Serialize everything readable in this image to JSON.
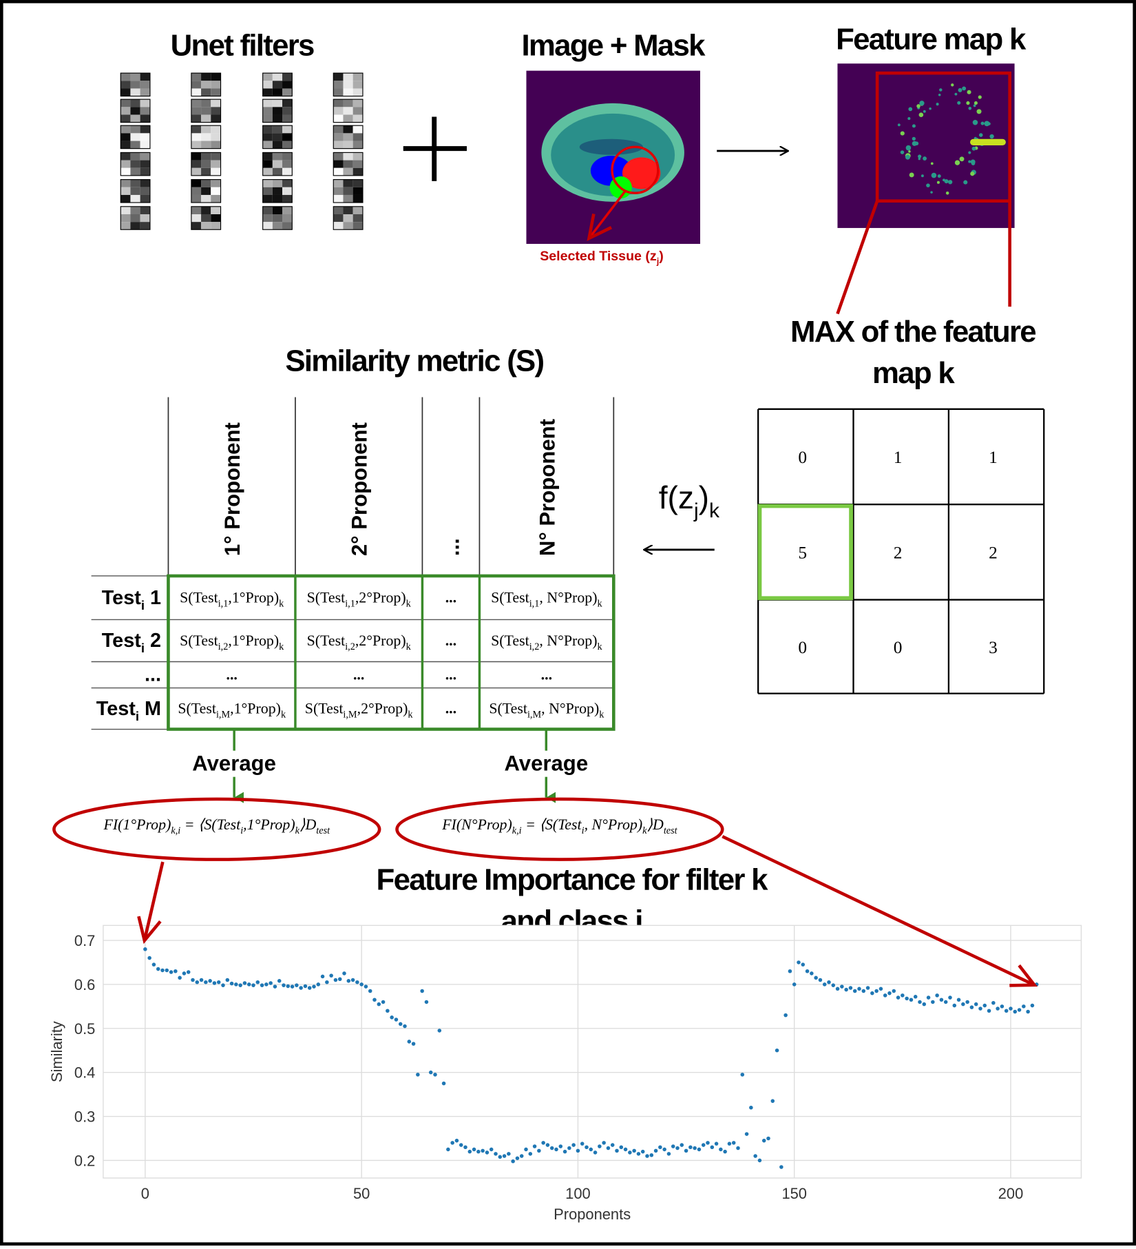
{
  "filters_title": "Unet filters",
  "image_title": "Image + Mask",
  "selected_tissue": [
    "Selected Tissue (z",
    "j",
    ")"
  ],
  "feature_map_title": "Feature map k",
  "max_label": "MAX of the feature map k",
  "matrix": [
    [
      0,
      1,
      1
    ],
    [
      5,
      2,
      2
    ],
    [
      0,
      0,
      3
    ]
  ],
  "f_label": [
    "f(z",
    "j",
    ")",
    "k"
  ],
  "similarity_title": "Similarity metric (S)",
  "table": {
    "columns": [
      "1° Proponent",
      "2° Proponent",
      "...",
      "N° Proponent"
    ],
    "rows": [
      {
        "label": [
          "Test",
          "i",
          " 1"
        ],
        "cells": [
          [
            "S(Test",
            "i,1",
            ",1°Prop)",
            "k"
          ],
          [
            "S(Test",
            "i,1",
            ",2°Prop)",
            "k"
          ],
          "...",
          [
            "S(Test",
            "i,1",
            ", N°Prop)",
            "k"
          ]
        ]
      },
      {
        "label": [
          "Test",
          "i",
          " 2"
        ],
        "cells": [
          [
            "S(Test",
            "i,2",
            ",1°Prop)",
            "k"
          ],
          [
            "S(Test",
            "i,2",
            ",2°Prop)",
            "k"
          ],
          "...",
          [
            "S(Test",
            "i,2",
            ", N°Prop)",
            "k"
          ]
        ]
      },
      {
        "label": "...",
        "cells": [
          "...",
          "...",
          "...",
          "..."
        ]
      },
      {
        "label": [
          "Test",
          "i",
          " M"
        ],
        "cells": [
          [
            "S(Test",
            "i,M",
            ",1°Prop)",
            "k"
          ],
          [
            "S(Test",
            "i,M",
            ",2°Prop)",
            "k"
          ],
          "...",
          [
            "S(Test",
            "i,M",
            ", N°Prop)",
            "k"
          ]
        ]
      }
    ]
  },
  "average_labels": [
    "Average",
    "Average"
  ],
  "formulas": [
    [
      "FI(1°Prop)",
      "k,i",
      " = ⟨S(Test",
      "i",
      ",1°Prop)",
      "k",
      "⟩D",
      "test"
    ],
    [
      "FI(N°Prop)",
      "k,i",
      " = ⟨S(Test",
      "i",
      ", N°Prop)",
      "k",
      "⟩D",
      "test"
    ]
  ],
  "chart_data": {
    "type": "scatter",
    "title": "Feature Importance for filter k and class i",
    "xlabel": "Proponents",
    "ylabel": "Similarity",
    "color": "#1f77b4",
    "grid": true,
    "xlim": [
      -9.7,
      216.3
    ],
    "ylim": [
      0.16,
      0.734
    ],
    "xticks": [
      0,
      50,
      100,
      150,
      200
    ],
    "yticks": [
      0.2,
      0.3,
      0.4,
      0.5,
      0.6,
      0.7
    ],
    "x": [
      0,
      1,
      2,
      3,
      4,
      5,
      6,
      7,
      8,
      9,
      10,
      11,
      12,
      13,
      14,
      15,
      16,
      17,
      18,
      19,
      20,
      21,
      22,
      23,
      24,
      25,
      26,
      27,
      28,
      29,
      30,
      31,
      32,
      33,
      34,
      35,
      36,
      37,
      38,
      39,
      40,
      41,
      42,
      43,
      44,
      45,
      46,
      47,
      48,
      49,
      50,
      51,
      52,
      53,
      54,
      55,
      56,
      57,
      58,
      59,
      60,
      61,
      62,
      63,
      64,
      65,
      66,
      67,
      68,
      69,
      70,
      71,
      72,
      73,
      74,
      75,
      76,
      77,
      78,
      79,
      80,
      81,
      82,
      83,
      84,
      85,
      86,
      87,
      88,
      89,
      90,
      91,
      92,
      93,
      94,
      95,
      96,
      97,
      98,
      99,
      100,
      101,
      102,
      103,
      104,
      105,
      106,
      107,
      108,
      109,
      110,
      111,
      112,
      113,
      114,
      115,
      116,
      117,
      118,
      119,
      120,
      121,
      122,
      123,
      124,
      125,
      126,
      127,
      128,
      129,
      130,
      131,
      132,
      133,
      134,
      135,
      136,
      137,
      138,
      139,
      140,
      141,
      142,
      143,
      144,
      145,
      146,
      147,
      148,
      149,
      150,
      151,
      152,
      153,
      154,
      155,
      156,
      157,
      158,
      159,
      160,
      161,
      162,
      163,
      164,
      165,
      166,
      167,
      168,
      169,
      170,
      171,
      172,
      173,
      174,
      175,
      176,
      177,
      178,
      179,
      180,
      181,
      182,
      183,
      184,
      185,
      186,
      187,
      188,
      189,
      190,
      191,
      192,
      193,
      194,
      195,
      196,
      197,
      198,
      199,
      200,
      201,
      202,
      203,
      204,
      205,
      206
    ],
    "values": [
      0.68,
      0.66,
      0.645,
      0.635,
      0.632,
      0.632,
      0.628,
      0.63,
      0.615,
      0.625,
      0.628,
      0.61,
      0.605,
      0.61,
      0.605,
      0.608,
      0.603,
      0.605,
      0.598,
      0.61,
      0.602,
      0.6,
      0.598,
      0.603,
      0.6,
      0.598,
      0.605,
      0.598,
      0.6,
      0.603,
      0.595,
      0.608,
      0.598,
      0.596,
      0.595,
      0.598,
      0.592,
      0.596,
      0.592,
      0.595,
      0.6,
      0.618,
      0.605,
      0.62,
      0.61,
      0.612,
      0.625,
      0.608,
      0.61,
      0.605,
      0.6,
      0.595,
      0.585,
      0.565,
      0.555,
      0.56,
      0.54,
      0.525,
      0.52,
      0.51,
      0.505,
      0.47,
      0.465,
      0.395,
      0.585,
      0.56,
      0.4,
      0.395,
      0.495,
      0.375,
      0.225,
      0.24,
      0.245,
      0.235,
      0.23,
      0.22,
      0.225,
      0.22,
      0.222,
      0.218,
      0.225,
      0.215,
      0.208,
      0.21,
      0.215,
      0.198,
      0.205,
      0.21,
      0.225,
      0.215,
      0.232,
      0.222,
      0.24,
      0.235,
      0.228,
      0.225,
      0.232,
      0.22,
      0.228,
      0.235,
      0.222,
      0.238,
      0.23,
      0.225,
      0.218,
      0.232,
      0.24,
      0.228,
      0.235,
      0.222,
      0.23,
      0.225,
      0.218,
      0.222,
      0.215,
      0.22,
      0.21,
      0.212,
      0.222,
      0.23,
      0.225,
      0.215,
      0.232,
      0.228,
      0.235,
      0.222,
      0.23,
      0.228,
      0.225,
      0.235,
      0.24,
      0.23,
      0.238,
      0.225,
      0.22,
      0.238,
      0.24,
      0.228,
      0.395,
      0.26,
      0.32,
      0.21,
      0.2,
      0.245,
      0.25,
      0.335,
      0.45,
      0.185,
      0.53,
      0.63,
      0.6,
      0.65,
      0.645,
      0.63,
      0.625,
      0.615,
      0.61,
      0.6,
      0.605,
      0.598,
      0.59,
      0.595,
      0.588,
      0.592,
      0.585,
      0.59,
      0.585,
      0.592,
      0.58,
      0.585,
      0.59,
      0.575,
      0.58,
      0.585,
      0.57,
      0.575,
      0.568,
      0.565,
      0.572,
      0.56,
      0.555,
      0.57,
      0.56,
      0.575,
      0.565,
      0.56,
      0.57,
      0.552,
      0.565,
      0.555,
      0.56,
      0.548,
      0.555,
      0.545,
      0.552,
      0.54,
      0.558,
      0.545,
      0.55,
      0.54,
      0.545,
      0.538,
      0.542,
      0.55,
      0.538,
      0.552,
      0.6
    ]
  }
}
